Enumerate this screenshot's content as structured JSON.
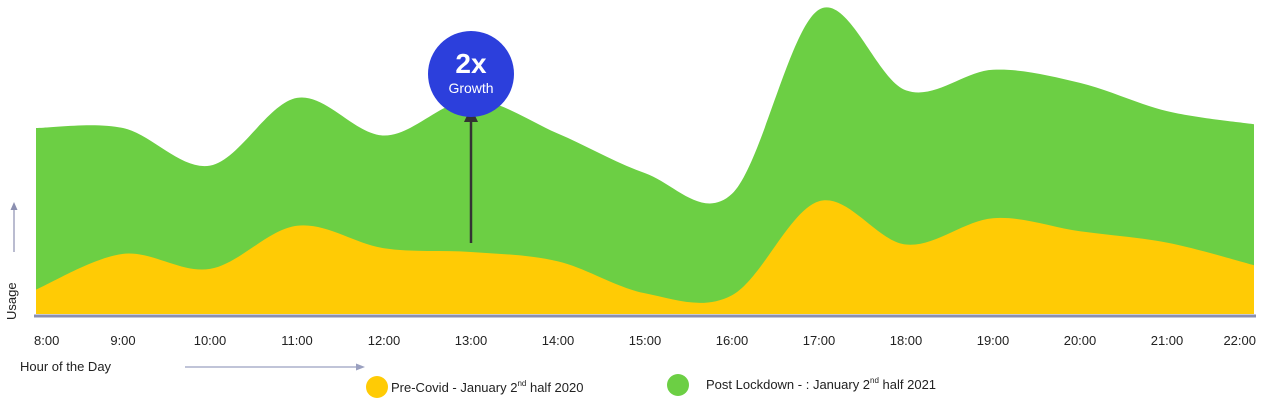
{
  "chart_data": {
    "type": "area",
    "xlabel": "Hour of the Day",
    "ylabel": "Usage",
    "x": [
      "8:00",
      "9:00",
      "10:00",
      "11:00",
      "12:00",
      "13:00",
      "14:00",
      "15:00",
      "16:00",
      "17:00",
      "18:00",
      "19:00",
      "20:00",
      "21:00",
      "22:00"
    ],
    "series": [
      {
        "name": "Post Lockdown - : January 2nd half 2021",
        "label_main": "Post Lockdown - : January 2",
        "label_sup": "nd",
        "label_tail": " half 2021",
        "color": "#6ccf44",
        "values": [
          99,
          99,
          79,
          115,
          95,
          114,
          96,
          75,
          64,
          162,
          119,
          130,
          123,
          108,
          101
        ]
      },
      {
        "name": "Pre-Covid - January 2nd half 2020",
        "label_main": "Pre-Covid - January 2",
        "label_sup": "nd",
        "label_tail": " half 2020",
        "color": "#ffcb05",
        "values": [
          13,
          32,
          24,
          47,
          35,
          33,
          28,
          11,
          10,
          60,
          37,
          51,
          44,
          38,
          26
        ]
      }
    ],
    "annotation": {
      "main": "2x",
      "sub": "Growth",
      "x": "13:00",
      "color": "#2c3fdc"
    },
    "ylim": [
      0,
      165
    ],
    "grid": false,
    "legend": "bottom"
  }
}
